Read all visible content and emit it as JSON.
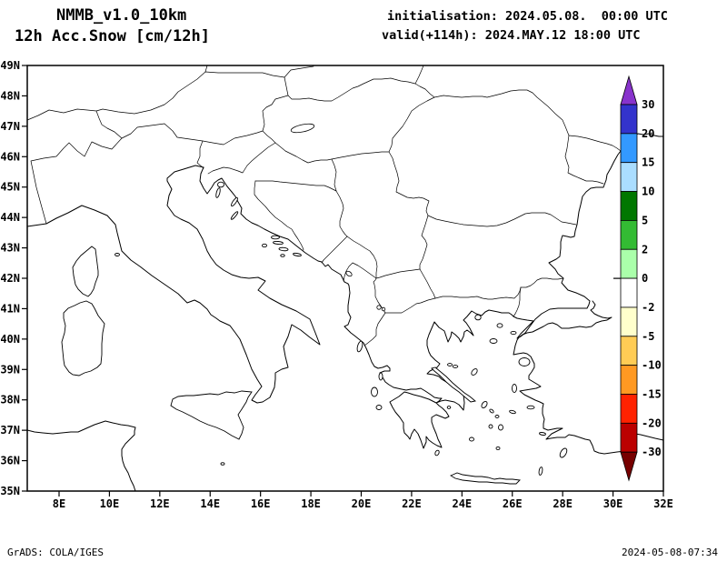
{
  "header": {
    "model": "NMMB_v1.0_10km",
    "product": "12h Acc.Snow [cm/12h]",
    "init": "initialisation: 2024.05.08.  00:00 UTC",
    "valid": "valid(+114h): 2024.MAY.12 18:00 UTC"
  },
  "footer": {
    "credit": "GrADS: COLA/IGES",
    "generated": "2024-05-08-07:34"
  },
  "map": {
    "lat_ticks": [
      "49N",
      "48N",
      "47N",
      "46N",
      "45N",
      "44N",
      "43N",
      "42N",
      "41N",
      "40N",
      "39N",
      "38N",
      "37N",
      "36N",
      "35N"
    ],
    "lon_ticks": [
      "8E",
      "10E",
      "12E",
      "14E",
      "16E",
      "18E",
      "20E",
      "22E",
      "24E",
      "26E",
      "28E",
      "30E",
      "32E"
    ]
  },
  "colorbar": {
    "tick_labels": [
      "30",
      "20",
      "15",
      "10",
      "5",
      "2",
      "0",
      "-2",
      "-5",
      "-10",
      "-15",
      "-20",
      "-30"
    ],
    "segment_colors": [
      "#3333cc",
      "#3399ff",
      "#aaddff",
      "#007700",
      "#33bb33",
      "#aaffaa",
      "#ffffff",
      "#ffffcc",
      "#ffcc55",
      "#ff9922",
      "#ff2200",
      "#bb0000"
    ],
    "arrow_top_color": "#8833cc",
    "arrow_bottom_color": "#770000"
  }
}
